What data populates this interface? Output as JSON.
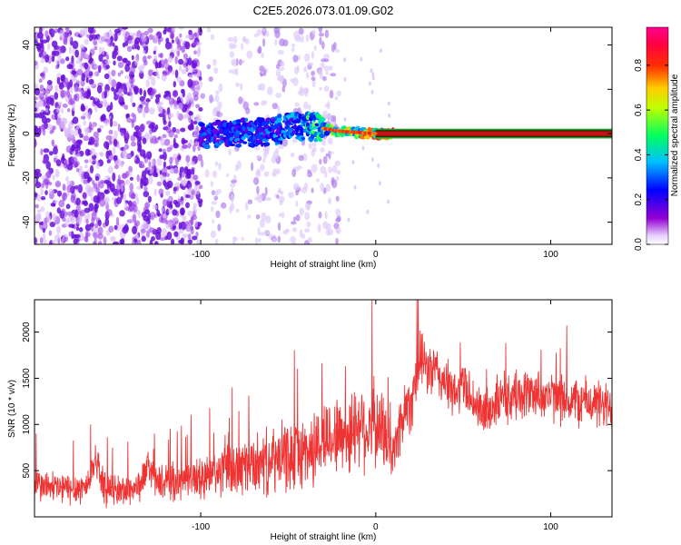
{
  "title": "C2E5.2026.073.01.09.G02",
  "chart_data": [
    {
      "type": "heatmap",
      "name": "spectrogram",
      "xlabel": "Height of straight line (km)",
      "ylabel": "Frequency (Hz)",
      "xlim": [
        -195,
        135
      ],
      "ylim": [
        -50,
        48
      ],
      "x_ticks": [
        -100,
        0,
        100
      ],
      "y_ticks": [
        -40,
        -20,
        0,
        20,
        40
      ],
      "colorbar": {
        "label": "Normalized spectral amplitude",
        "range": [
          0,
          0.97
        ],
        "ticks": [
          0.0,
          0.2,
          0.4,
          0.6,
          0.8
        ],
        "tick_labels": [
          "0.0",
          "0.2",
          "0.4",
          "0.6",
          "0.8"
        ],
        "colors": [
          "#ffffff",
          "#9400d3",
          "#0000ff",
          "#00ffff",
          "#00ff00",
          "#ffff00",
          "#ff8000",
          "#ff0000",
          "#ff00ff"
        ]
      },
      "features": [
        {
          "region": "noise",
          "x_range": [
            -195,
            -100
          ],
          "freq_range": [
            -50,
            48
          ],
          "amplitude": 0.15
        },
        {
          "region": "noise-sparse",
          "x_range": [
            -100,
            -20
          ],
          "freq_range": [
            -50,
            48
          ],
          "amplitude": 0.1
        },
        {
          "region": "signal-band",
          "x": [
            -100,
            -80,
            -60,
            -45,
            -35,
            -20,
            0,
            10,
            135
          ],
          "freq": [
            0,
            0,
            1,
            4,
            3,
            1,
            0,
            0,
            0
          ],
          "amplitude": [
            0.3,
            0.35,
            0.35,
            0.4,
            0.55,
            0.65,
            0.8,
            0.85,
            0.85
          ]
        }
      ]
    },
    {
      "type": "line",
      "name": "snr",
      "xlabel": "Height of straight line (km)",
      "ylabel": "SNR (10 * v/v)",
      "xlim": [
        -195,
        135
      ],
      "ylim": [
        0,
        2350
      ],
      "x_ticks": [
        -100,
        0,
        100
      ],
      "y_ticks": [
        500,
        1000,
        1500,
        2000
      ],
      "series": [
        {
          "name": "SNR",
          "color": "#ee3333",
          "x": [
            -195,
            -185,
            -175,
            -165,
            -160,
            -155,
            -145,
            -135,
            -130,
            -125,
            -115,
            -105,
            -100,
            -90,
            -80,
            -70,
            -60,
            -50,
            -45,
            -35,
            -30,
            -20,
            -15,
            -10,
            -5,
            0,
            5,
            10,
            15,
            20,
            25,
            30,
            35,
            40,
            45,
            50,
            55,
            60,
            70,
            80,
            90,
            100,
            110,
            120,
            130,
            135
          ],
          "values": [
            350,
            320,
            300,
            330,
            650,
            300,
            280,
            330,
            560,
            370,
            380,
            420,
            400,
            480,
            520,
            560,
            590,
            650,
            680,
            730,
            850,
            900,
            880,
            1050,
            950,
            1000,
            900,
            650,
            1100,
            1250,
            1700,
            1600,
            1550,
            1450,
            1300,
            1450,
            1300,
            1100,
            1250,
            1300,
            1350,
            1300,
            1250,
            1250,
            1200,
            1150
          ],
          "noise_amplitude": [
            300,
            300,
            300,
            300,
            300,
            300,
            300,
            300,
            300,
            300,
            350,
            400,
            400,
            450,
            500,
            550,
            600,
            650,
            650,
            700,
            700,
            700,
            750,
            800,
            800,
            800,
            700,
            500,
            600,
            600,
            500,
            500,
            500,
            450,
            450,
            450,
            450,
            450,
            450,
            450,
            450,
            450,
            450,
            450,
            450,
            450
          ]
        }
      ]
    }
  ]
}
